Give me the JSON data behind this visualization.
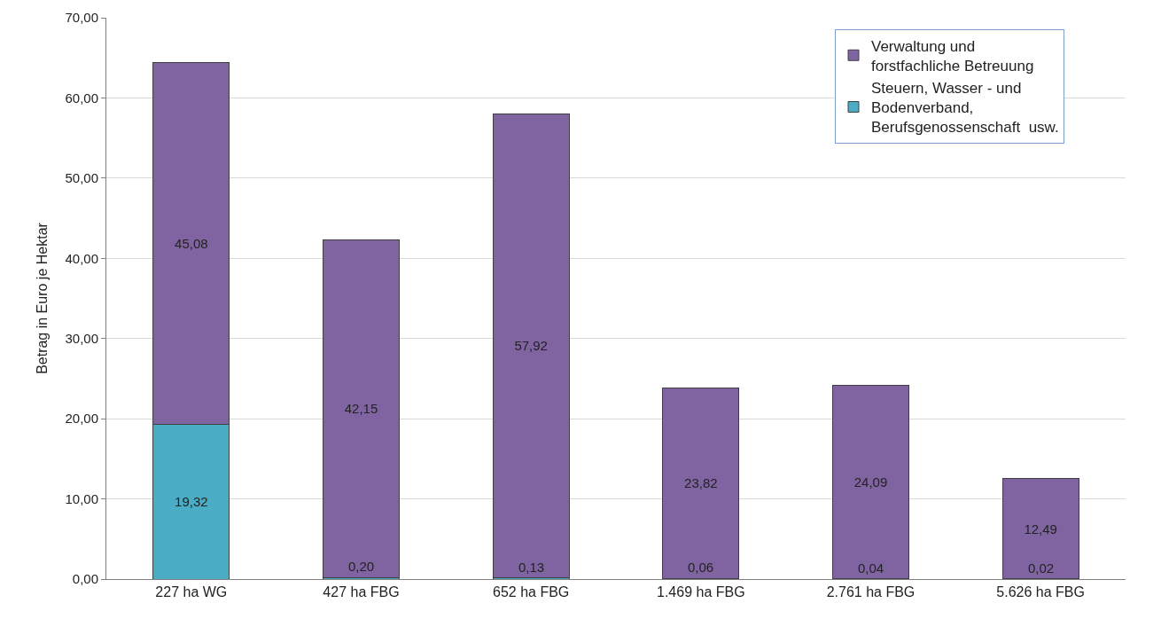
{
  "chart_data": {
    "type": "bar",
    "stacked": true,
    "ylabel": "Betrag in Euro je Hektar",
    "categories": [
      "227 ha WG",
      "427 ha FBG",
      "652 ha FBG",
      "1.469 ha FBG",
      "2.761 ha FBG",
      "5.626 ha FBG"
    ],
    "series": [
      {
        "name": "Steuern, Wasser - und Bodenverband, Berufsgenossenschaft  usw.",
        "color": "#4bacc6",
        "values": [
          19.32,
          0.2,
          0.13,
          0.06,
          0.04,
          0.02
        ],
        "value_labels": [
          "19,32",
          "0,20",
          "0,13",
          "0,06",
          "0,04",
          "0,02"
        ]
      },
      {
        "name": "Verwaltung und forstfachliche Betreuung",
        "color": "#8064a2",
        "values": [
          45.08,
          42.15,
          57.92,
          23.82,
          24.09,
          12.49
        ],
        "value_labels": [
          "45,08",
          "42,15",
          "57,92",
          "23,82",
          "24,09",
          "12,49"
        ]
      }
    ],
    "ylim": [
      0,
      70
    ],
    "yticks": [
      {
        "value": 0,
        "label": "0,00"
      },
      {
        "value": 10,
        "label": "10,00"
      },
      {
        "value": 20,
        "label": "20,00"
      },
      {
        "value": 30,
        "label": "30,00"
      },
      {
        "value": 40,
        "label": "40,00"
      },
      {
        "value": 50,
        "label": "50,00"
      },
      {
        "value": 60,
        "label": "60,00"
      },
      {
        "value": 70,
        "label": "70,00"
      }
    ],
    "grid": "y",
    "legend": "top right"
  }
}
